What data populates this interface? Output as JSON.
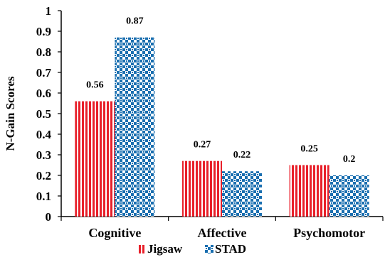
{
  "chart_data": {
    "type": "bar",
    "categories": [
      "Cognitive",
      "Affective",
      "Psychomotor"
    ],
    "series": [
      {
        "name": "Jigsaw",
        "values": [
          0.56,
          0.27,
          0.25
        ],
        "color": "#e8202a",
        "pattern": "vertical-stripes"
      },
      {
        "name": "STAD",
        "values": [
          0.87,
          0.22,
          0.2
        ],
        "color": "#1a6fb0",
        "pattern": "checker-dots"
      }
    ],
    "data_labels": [
      [
        "0.56",
        "0.27",
        "0.25"
      ],
      [
        "0.87",
        "0.22",
        "0.2"
      ]
    ],
    "ylabel": "N-Gain Scores",
    "xlabel": "",
    "ylim": [
      0,
      1
    ],
    "yticks": [
      "0",
      "0.1",
      "0.2",
      "0.3",
      "0.4",
      "0.5",
      "0.6",
      "0.7",
      "0.8",
      "0.9",
      "1"
    ],
    "grid": false,
    "legend_position": "bottom"
  }
}
